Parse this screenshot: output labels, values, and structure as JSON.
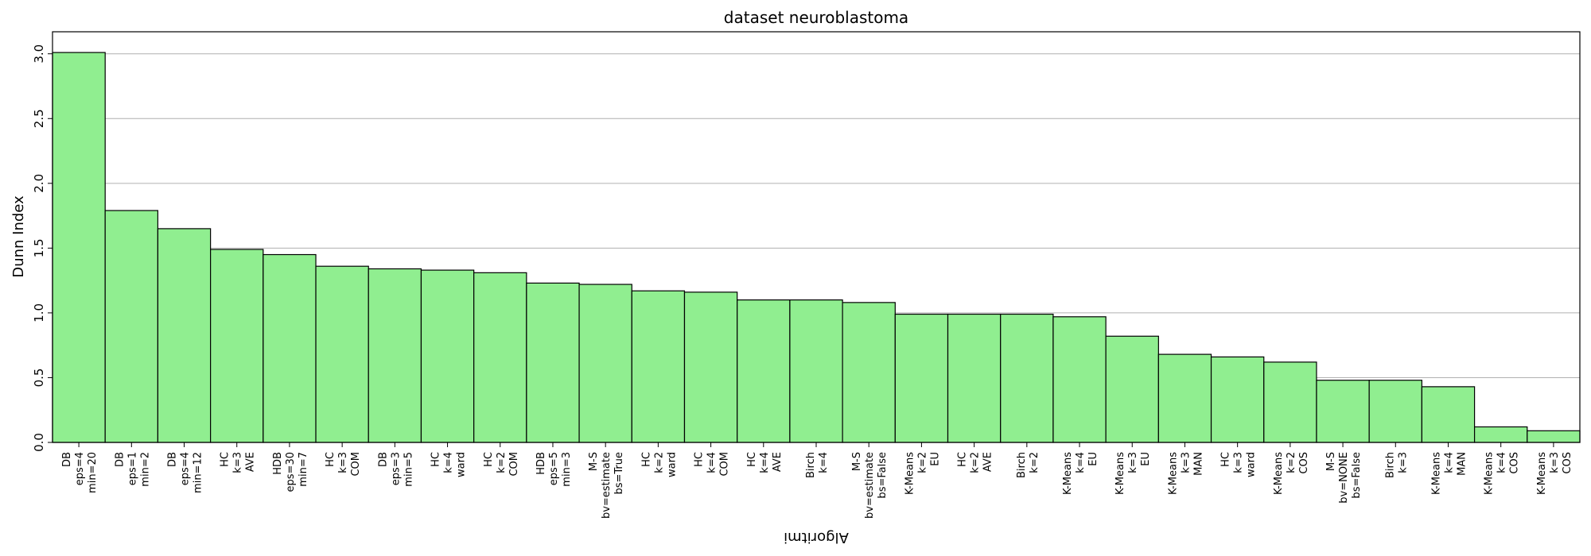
{
  "chart_data": {
    "type": "bar",
    "title": "dataset neuroblastoma",
    "xlabel": "Algoritmi",
    "ylabel": "Dunn Index",
    "ylim": [
      0,
      3.17
    ],
    "yticks": [
      "0.0",
      "0.5",
      "1.0",
      "1.5",
      "2.0",
      "2.5",
      "3.0"
    ],
    "grid": "horizontal",
    "bar_color": "#90EE90",
    "edge_color": "#000000",
    "categories": [
      "DB\neps=4\nmin=20",
      "DB\neps=1\nmin=2",
      "DB\neps=4\nmin=12",
      "HC\nk=3\nAVE",
      "HDB\neps=30\nmin=7",
      "HC\nk=3\nCOM",
      "DB\neps=3\nmin=5",
      "HC\nk=4\nward",
      "HC\nk=2\nCOM",
      "HDB\neps=5\nmin=3",
      "M-S\nbv=estimate\nbs=True",
      "HC\nk=2\nward",
      "HC\nk=4\nCOM",
      "HC\nk=4\nAVE",
      "Birch\nk=4",
      "M-S\nbv=estimate\nbs=False",
      "K-Means\nk=2\nEU",
      "HC\nk=2\nAVE",
      "Birch\nk=2",
      "K-Means\nk=4\nEU",
      "K-Means\nk=3\nEU",
      "K-Means\nk=3\nMAN",
      "HC\nk=3\nward",
      "K-Means\nk=2\nCOS",
      "M-S\nbv=NONE\nbs=False",
      "Birch\nk=3",
      "K-Means\nk=4\nMAN",
      "K-Means\nk=4\nCOS",
      "K-Means\nk=3\nCOS"
    ],
    "values": [
      3.01,
      1.79,
      1.65,
      1.49,
      1.45,
      1.36,
      1.34,
      1.33,
      1.31,
      1.23,
      1.22,
      1.17,
      1.16,
      1.1,
      1.1,
      1.08,
      0.99,
      0.99,
      0.99,
      0.97,
      0.82,
      0.68,
      0.66,
      0.62,
      0.48,
      0.48,
      0.43,
      0.12,
      0.09
    ]
  }
}
